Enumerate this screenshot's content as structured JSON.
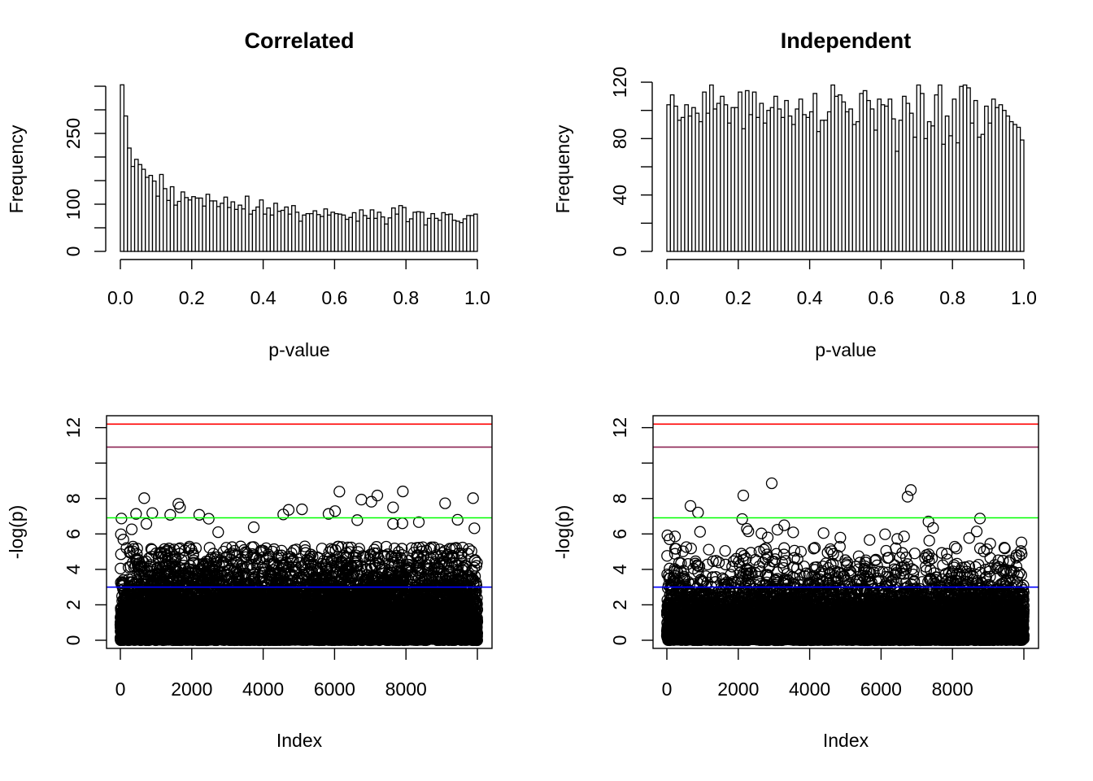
{
  "chart_data": [
    {
      "type": "bar",
      "title": "Correlated",
      "xlabel": "p-value",
      "ylabel": "Frequency",
      "xlim": [
        0,
        1
      ],
      "ylim": [
        0,
        353
      ],
      "bin_width": 0.01,
      "x_ticks": [
        0,
        0.2,
        0.4,
        0.6,
        0.8,
        1.0
      ],
      "x_tick_labels": [
        "0.0",
        "0.2",
        "0.4",
        "0.6",
        "0.8",
        "1.0"
      ],
      "y_ticks": [
        0,
        50,
        100,
        150,
        200,
        250,
        300,
        350
      ],
      "y_tick_labels": {
        "0": "0",
        "100": "100",
        "250": "250"
      },
      "values": [
        353,
        287,
        219,
        180,
        195,
        184,
        174,
        157,
        161,
        149,
        117,
        163,
        133,
        108,
        137,
        98,
        106,
        126,
        114,
        109,
        116,
        113,
        113,
        96,
        121,
        107,
        107,
        95,
        102,
        115,
        93,
        105,
        89,
        98,
        90,
        117,
        79,
        87,
        94,
        109,
        79,
        92,
        77,
        102,
        85,
        87,
        94,
        79,
        97,
        83,
        64,
        77,
        80,
        80,
        86,
        78,
        74,
        90,
        77,
        83,
        80,
        79,
        77,
        68,
        72,
        82,
        64,
        88,
        76,
        70,
        88,
        70,
        83,
        73,
        58,
        71,
        92,
        79,
        97,
        93,
        63,
        69,
        83,
        84,
        83,
        56,
        70,
        80,
        70,
        66,
        82,
        78,
        79,
        66,
        64,
        61,
        69,
        76,
        76,
        79
      ]
    },
    {
      "type": "bar",
      "title": "Independent",
      "xlabel": "p-value",
      "ylabel": "Frequency",
      "xlim": [
        0,
        1
      ],
      "ylim": [
        0,
        120
      ],
      "bin_width": 0.01,
      "x_ticks": [
        0,
        0.2,
        0.4,
        0.6,
        0.8,
        1.0
      ],
      "x_tick_labels": [
        "0.0",
        "0.2",
        "0.4",
        "0.6",
        "0.8",
        "1.0"
      ],
      "y_ticks": [
        0,
        20,
        40,
        60,
        80,
        100,
        120
      ],
      "y_tick_labels": {
        "0": "0",
        "40": "40",
        "80": "80",
        "120": "120"
      },
      "values": [
        104,
        111,
        103,
        93,
        95,
        104,
        96,
        102,
        98,
        92,
        113,
        98,
        118,
        101,
        105,
        110,
        104,
        91,
        102,
        102,
        113,
        87,
        114,
        97,
        113,
        95,
        105,
        91,
        100,
        102,
        110,
        101,
        95,
        107,
        96,
        90,
        101,
        108,
        97,
        95,
        99,
        112,
        85,
        93,
        93,
        99,
        118,
        110,
        111,
        106,
        99,
        101,
        90,
        92,
        112,
        114,
        107,
        101,
        86,
        108,
        104,
        103,
        108,
        94,
        71,
        93,
        110,
        105,
        98,
        81,
        118,
        112,
        80,
        92,
        89,
        111,
        118,
        76,
        96,
        82,
        108,
        77,
        117,
        118,
        116,
        91,
        107,
        81,
        83,
        103,
        91,
        108,
        102,
        104,
        100,
        96,
        92,
        90,
        88,
        79
      ]
    },
    {
      "type": "scatter",
      "title": "",
      "xlabel": "Index",
      "ylabel": "-log(p)",
      "n_points": 10000,
      "p_distribution_from": "Correlated",
      "xlim": [
        0,
        10000
      ],
      "ylim": [
        0,
        12.2
      ],
      "x_ticks": [
        0,
        2000,
        4000,
        6000,
        8000,
        10000
      ],
      "x_tick_labels": [
        "0",
        "2000",
        "4000",
        "6000",
        "8000"
      ],
      "y_ticks": [
        0,
        2,
        4,
        6,
        8,
        10,
        12
      ],
      "y_tick_labels": {
        "0": "0",
        "2": "2",
        "4": "4",
        "6": "6",
        "8": "8",
        "12": "12"
      },
      "hlines": [
        {
          "y": 12.2,
          "color": "#FF0000"
        },
        {
          "y": 10.9,
          "color": "#8B2252"
        },
        {
          "y": 6.91,
          "color": "#00FF00"
        },
        {
          "y": 3.0,
          "color": "#0000FF"
        }
      ],
      "top_points": [
        [
          668,
          8.02
        ],
        [
          30,
          6.87
        ],
        [
          440,
          7.13
        ],
        [
          895,
          7.18
        ],
        [
          1624,
          7.7
        ],
        [
          1670,
          7.5
        ],
        [
          1397,
          7.08
        ],
        [
          2210,
          7.08
        ],
        [
          2475,
          6.86
        ],
        [
          729,
          6.57
        ],
        [
          319,
          6.26
        ],
        [
          15,
          5.98
        ],
        [
          84,
          5.68
        ],
        [
          3736,
          6.38
        ],
        [
          2740,
          6.1
        ],
        [
          6135,
          8.39
        ],
        [
          6750,
          7.94
        ],
        [
          7032,
          7.82
        ],
        [
          7198,
          8.17
        ],
        [
          7912,
          8.4
        ],
        [
          7638,
          7.5
        ],
        [
          9096,
          7.73
        ],
        [
          9879,
          8.02
        ],
        [
          5087,
          7.39
        ],
        [
          4715,
          7.36
        ],
        [
          4563,
          7.1
        ],
        [
          6014,
          7.29
        ],
        [
          5831,
          7.13
        ],
        [
          6636,
          6.78
        ],
        [
          9446,
          6.8
        ],
        [
          7638,
          6.57
        ],
        [
          7900,
          6.6
        ],
        [
          8360,
          6.67
        ],
        [
          9916,
          6.32
        ]
      ]
    },
    {
      "type": "scatter",
      "title": "",
      "xlabel": "Index",
      "ylabel": "-log(p)",
      "n_points": 10000,
      "p_distribution_from": "Independent",
      "xlim": [
        0,
        10000
      ],
      "ylim": [
        0,
        12.2
      ],
      "x_ticks": [
        0,
        2000,
        4000,
        6000,
        8000,
        10000
      ],
      "x_tick_labels": [
        "0",
        "2000",
        "4000",
        "6000",
        "8000"
      ],
      "y_ticks": [
        0,
        2,
        4,
        6,
        8,
        10,
        12
      ],
      "y_tick_labels": {
        "0": "0",
        "2": "2",
        "4": "4",
        "6": "6",
        "8": "8",
        "12": "12"
      },
      "hlines": [
        {
          "y": 12.2,
          "color": "#FF0000"
        },
        {
          "y": 10.9,
          "color": "#8B2252"
        },
        {
          "y": 6.91,
          "color": "#00FF00"
        },
        {
          "y": 3.0,
          "color": "#0000FF"
        }
      ],
      "top_points": [
        [
          2938,
          8.86
        ],
        [
          2141,
          8.17
        ],
        [
          6834,
          8.48
        ],
        [
          6743,
          8.1
        ],
        [
          661,
          7.58
        ],
        [
          873,
          7.21
        ],
        [
          8770,
          6.87
        ],
        [
          2111,
          6.84
        ],
        [
          7328,
          6.7
        ],
        [
          7456,
          6.34
        ],
        [
          930,
          6.12
        ],
        [
          2240,
          6.29
        ],
        [
          2283,
          6.15
        ],
        [
          3287,
          6.49
        ],
        [
          3098,
          6.24
        ],
        [
          3538,
          6.09
        ],
        [
          2649,
          6.03
        ],
        [
          2825,
          5.8
        ],
        [
          15,
          5.92
        ],
        [
          75,
          5.7
        ],
        [
          228,
          5.86
        ],
        [
          8679,
          6.14
        ],
        [
          7350,
          5.62
        ],
        [
          9932,
          5.52
        ],
        [
          4389,
          6.05
        ],
        [
          6112,
          5.98
        ],
        [
          5678,
          5.66
        ],
        [
          4859,
          5.79
        ],
        [
          8467,
          5.77
        ],
        [
          9059,
          5.45
        ],
        [
          6454,
          5.72
        ],
        [
          6644,
          5.86
        ]
      ]
    }
  ]
}
